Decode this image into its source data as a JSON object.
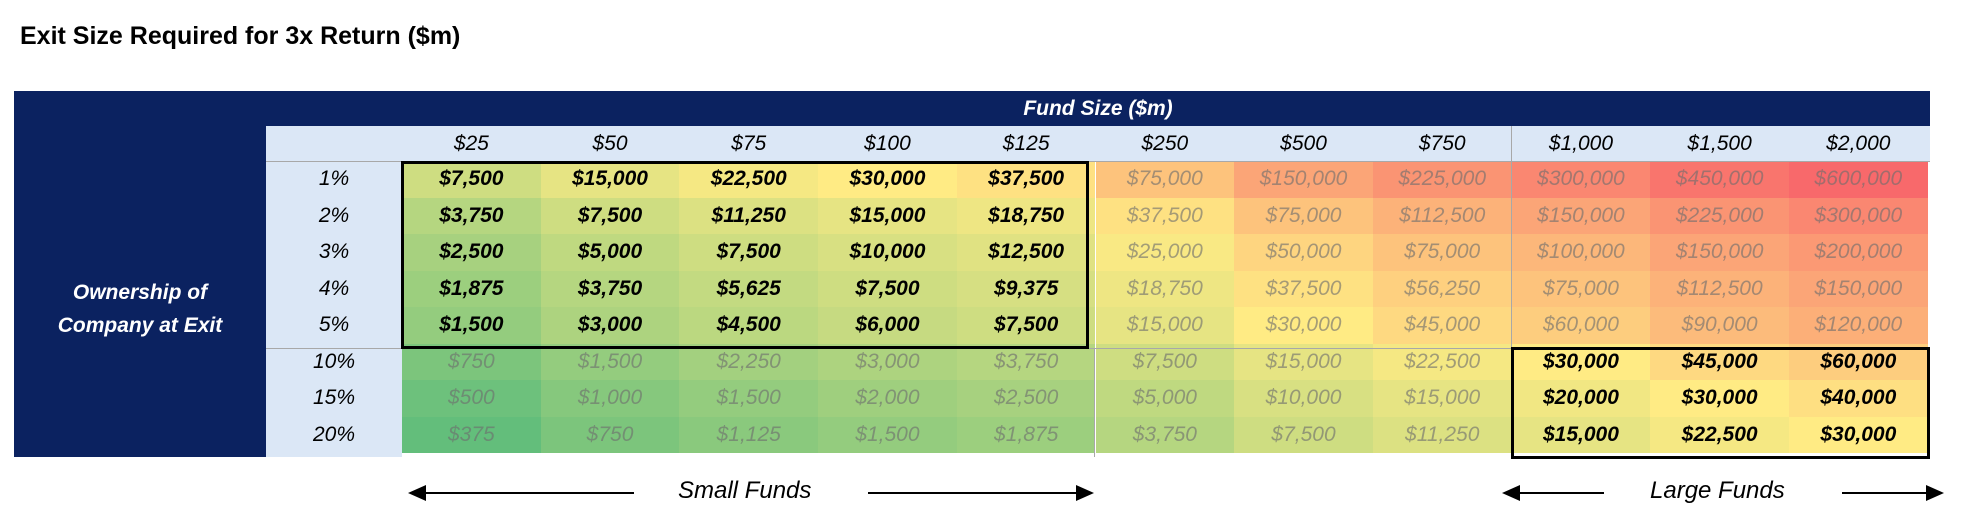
{
  "title": "Exit Size Required for 3x Return ($m)",
  "header": {
    "fund_size_label": "Fund Size ($m)",
    "ownership_label": "Ownership of\nCompany at Exit"
  },
  "fund_sizes": [
    "$25",
    "$50",
    "$75",
    "$100",
    "$125",
    "$250",
    "$500",
    "$750",
    "$1,000",
    "$1,500",
    "$2,000"
  ],
  "ownership": [
    "1%",
    "2%",
    "3%",
    "4%",
    "5%",
    "10%",
    "15%",
    "20%"
  ],
  "rows": [
    [
      "$7,500",
      "$15,000",
      "$22,500",
      "$30,000",
      "$37,500",
      "$75,000",
      "$150,000",
      "$225,000",
      "$300,000",
      "$450,000",
      "$600,000"
    ],
    [
      "$3,750",
      "$7,500",
      "$11,250",
      "$15,000",
      "$18,750",
      "$37,500",
      "$75,000",
      "$112,500",
      "$150,000",
      "$225,000",
      "$300,000"
    ],
    [
      "$2,500",
      "$5,000",
      "$7,500",
      "$10,000",
      "$12,500",
      "$25,000",
      "$50,000",
      "$75,000",
      "$100,000",
      "$150,000",
      "$200,000"
    ],
    [
      "$1,875",
      "$3,750",
      "$5,625",
      "$7,500",
      "$9,375",
      "$18,750",
      "$37,500",
      "$56,250",
      "$75,000",
      "$112,500",
      "$150,000"
    ],
    [
      "$1,500",
      "$3,000",
      "$4,500",
      "$6,000",
      "$7,500",
      "$15,000",
      "$30,000",
      "$45,000",
      "$60,000",
      "$90,000",
      "$120,000"
    ],
    [
      "$750",
      "$1,500",
      "$2,250",
      "$3,000",
      "$3,750",
      "$7,500",
      "$15,000",
      "$22,500",
      "$30,000",
      "$45,000",
      "$60,000"
    ],
    [
      "$500",
      "$1,000",
      "$1,500",
      "$2,000",
      "$2,500",
      "$5,000",
      "$10,000",
      "$15,000",
      "$20,000",
      "$30,000",
      "$40,000"
    ],
    [
      "$375",
      "$750",
      "$1,125",
      "$1,500",
      "$1,875",
      "$3,750",
      "$7,500",
      "$11,250",
      "$15,000",
      "$22,500",
      "$30,000"
    ]
  ],
  "colors": {
    "header_bg": "#0b2260",
    "label_bg": "#dbe7f6",
    "scale_low": "#63be7b",
    "scale_mid": "#ffeb84",
    "scale_high": "#f8696b"
  },
  "footer": {
    "small_funds_label": "Small Funds",
    "large_funds_label": "Large Funds"
  }
}
